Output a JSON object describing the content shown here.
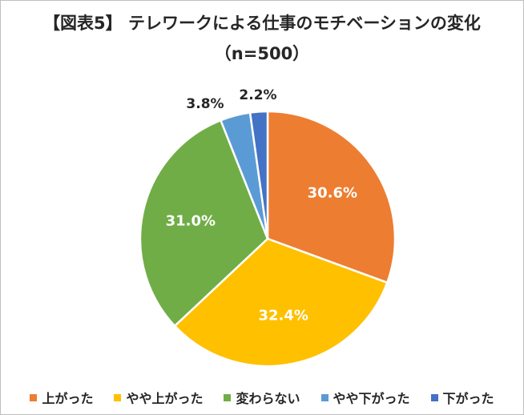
{
  "chart_data": {
    "type": "pie",
    "title": "【図表5】 テレワークによる仕事のモチベーションの変化",
    "subtitle": "（n=500）",
    "categories": [
      "上がった",
      "やや上がった",
      "変わらない",
      "やや下がった",
      "下がった"
    ],
    "values": [
      30.6,
      32.4,
      31.0,
      3.8,
      2.2
    ],
    "labels": [
      "30.6%",
      "32.4%",
      "31.0%",
      "3.8%",
      "2.2%"
    ],
    "colors": [
      "#ED7D31",
      "#FFC000",
      "#70AD47",
      "#5B9BD5",
      "#4472C4"
    ],
    "legend_position": "bottom"
  }
}
